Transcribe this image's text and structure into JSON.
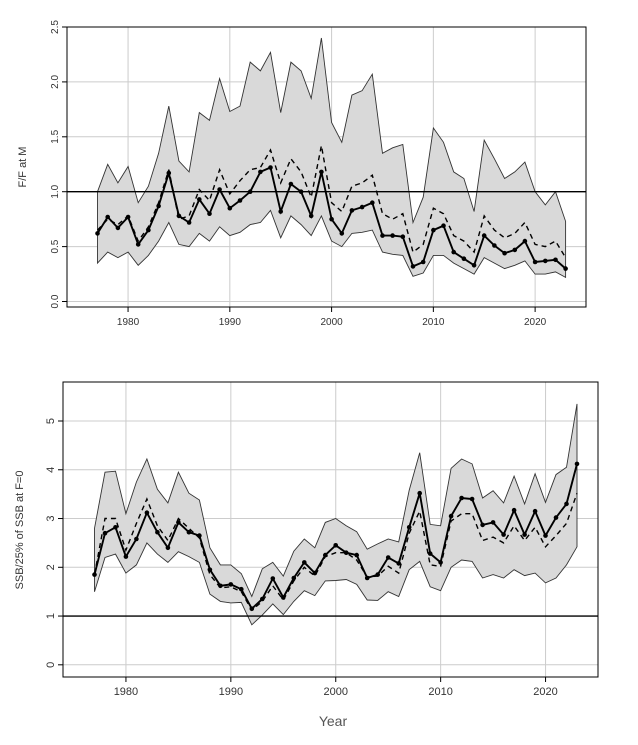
{
  "chart_data": [
    {
      "type": "line",
      "ylabel": "F/F at M",
      "xlabel": "",
      "xlim": [
        1974,
        2025
      ],
      "ylim": [
        -0.05,
        2.5
      ],
      "xticks": [
        1980,
        1990,
        2000,
        2010,
        2020
      ],
      "yticks": [
        "0.0",
        "0.5",
        "1.0",
        "1.5",
        "2.0",
        "2.5"
      ],
      "reference_line": 1.0,
      "grid": true,
      "colors": {
        "band": "#d9d9d9",
        "line": "#000000",
        "grid": "#cccccc"
      },
      "x": [
        1977,
        1978,
        1979,
        1980,
        1981,
        1982,
        1983,
        1984,
        1985,
        1986,
        1987,
        1988,
        1989,
        1990,
        1991,
        1992,
        1993,
        1994,
        1995,
        1996,
        1997,
        1998,
        1999,
        2000,
        2001,
        2002,
        2003,
        2004,
        2005,
        2006,
        2007,
        2008,
        2009,
        2010,
        2011,
        2012,
        2013,
        2014,
        2015,
        2016,
        2017,
        2018,
        2019,
        2020,
        2021,
        2022,
        2023
      ],
      "series": [
        {
          "role": "band_upper",
          "style": "area",
          "values": [
            1.0,
            1.25,
            1.08,
            1.23,
            0.9,
            1.05,
            1.35,
            1.78,
            1.28,
            1.18,
            1.72,
            1.65,
            2.03,
            1.73,
            1.78,
            2.18,
            2.1,
            2.27,
            1.72,
            2.18,
            2.1,
            1.85,
            2.4,
            1.63,
            1.45,
            1.88,
            1.92,
            2.07,
            1.35,
            1.4,
            1.43,
            0.72,
            0.95,
            1.58,
            1.45,
            1.18,
            1.12,
            0.82,
            1.47,
            1.3,
            1.12,
            1.18,
            1.27,
            1.0,
            0.88,
            1.0,
            0.73
          ]
        },
        {
          "role": "band_lower",
          "style": "area",
          "values": [
            0.35,
            0.45,
            0.4,
            0.45,
            0.33,
            0.42,
            0.55,
            0.72,
            0.52,
            0.5,
            0.62,
            0.55,
            0.68,
            0.6,
            0.63,
            0.7,
            0.72,
            0.83,
            0.58,
            0.78,
            0.7,
            0.6,
            0.78,
            0.55,
            0.5,
            0.62,
            0.63,
            0.65,
            0.45,
            0.43,
            0.42,
            0.23,
            0.26,
            0.42,
            0.42,
            0.35,
            0.3,
            0.25,
            0.4,
            0.35,
            0.3,
            0.33,
            0.37,
            0.25,
            0.25,
            0.27,
            0.22
          ]
        },
        {
          "role": "dashed",
          "style": "dashed",
          "values": [
            0.65,
            0.75,
            0.7,
            0.78,
            0.55,
            0.68,
            0.9,
            1.2,
            0.75,
            0.78,
            1.02,
            0.92,
            1.2,
            0.98,
            1.1,
            1.2,
            1.22,
            1.38,
            1.08,
            1.3,
            1.18,
            0.95,
            1.42,
            0.9,
            0.82,
            1.05,
            1.08,
            1.15,
            0.8,
            0.75,
            0.8,
            0.45,
            0.52,
            0.85,
            0.8,
            0.6,
            0.55,
            0.45,
            0.78,
            0.65,
            0.58,
            0.62,
            0.72,
            0.52,
            0.5,
            0.55,
            0.4
          ]
        },
        {
          "role": "median",
          "style": "solid-points",
          "values": [
            0.62,
            0.77,
            0.67,
            0.77,
            0.52,
            0.65,
            0.87,
            1.17,
            0.78,
            0.72,
            0.93,
            0.8,
            1.02,
            0.85,
            0.92,
            1.0,
            1.18,
            1.22,
            0.82,
            1.07,
            1.0,
            0.78,
            1.18,
            0.75,
            0.62,
            0.83,
            0.86,
            0.9,
            0.6,
            0.6,
            0.59,
            0.32,
            0.36,
            0.65,
            0.69,
            0.45,
            0.39,
            0.33,
            0.6,
            0.51,
            0.44,
            0.47,
            0.55,
            0.36,
            0.37,
            0.38,
            0.3
          ]
        }
      ]
    },
    {
      "type": "line",
      "ylabel": "SSB/25% of SSB at F=0",
      "xlabel": "Year",
      "xlim": [
        1974,
        2025
      ],
      "ylim": [
        -0.25,
        5.8
      ],
      "xticks": [
        1980,
        1990,
        2000,
        2010,
        2020
      ],
      "yticks": [
        "0",
        "1",
        "2",
        "3",
        "4",
        "5"
      ],
      "reference_line": 1.0,
      "grid": true,
      "colors": {
        "band": "#d9d9d9",
        "line": "#000000",
        "grid": "#cccccc"
      },
      "x": [
        1977,
        1978,
        1979,
        1980,
        1981,
        1982,
        1983,
        1984,
        1985,
        1986,
        1987,
        1988,
        1989,
        1990,
        1991,
        1992,
        1993,
        1994,
        1995,
        1996,
        1997,
        1998,
        1999,
        2000,
        2001,
        2002,
        2003,
        2004,
        2005,
        2006,
        2007,
        2008,
        2009,
        2010,
        2011,
        2012,
        2013,
        2014,
        2015,
        2016,
        2017,
        2018,
        2019,
        2020,
        2021,
        2022,
        2023
      ],
      "series": [
        {
          "role": "band_upper",
          "style": "area",
          "values": [
            2.8,
            3.95,
            3.97,
            3.1,
            3.75,
            4.22,
            3.6,
            3.32,
            3.95,
            3.52,
            3.38,
            2.4,
            2.05,
            2.05,
            1.87,
            1.4,
            1.97,
            2.1,
            1.82,
            2.33,
            2.58,
            2.4,
            2.92,
            3.0,
            2.85,
            2.73,
            2.37,
            2.48,
            2.58,
            2.52,
            3.58,
            4.35,
            2.88,
            2.85,
            4.03,
            4.22,
            4.12,
            3.42,
            3.57,
            3.32,
            3.87,
            3.3,
            3.92,
            3.33,
            3.9,
            4.05,
            5.35
          ]
        },
        {
          "role": "band_lower",
          "style": "area",
          "values": [
            1.5,
            2.2,
            2.27,
            1.88,
            2.05,
            2.5,
            2.27,
            2.1,
            2.32,
            2.22,
            2.1,
            1.45,
            1.3,
            1.27,
            1.28,
            0.82,
            1.02,
            1.25,
            1.03,
            1.3,
            1.52,
            1.42,
            1.72,
            1.73,
            1.75,
            1.65,
            1.33,
            1.32,
            1.5,
            1.4,
            1.95,
            2.12,
            1.6,
            1.52,
            2.0,
            2.15,
            2.12,
            1.78,
            1.85,
            1.78,
            1.95,
            1.83,
            1.88,
            1.68,
            1.78,
            2.05,
            2.42
          ]
        },
        {
          "role": "dashed",
          "style": "dashed",
          "values": [
            1.85,
            3.0,
            3.0,
            2.35,
            2.9,
            3.4,
            2.85,
            2.55,
            3.0,
            2.8,
            2.6,
            1.85,
            1.58,
            1.6,
            1.5,
            1.12,
            1.3,
            1.62,
            1.33,
            1.72,
            2.0,
            1.82,
            2.22,
            2.3,
            2.3,
            2.15,
            1.8,
            1.82,
            2.02,
            1.88,
            2.7,
            3.15,
            2.05,
            2.02,
            2.95,
            3.1,
            3.1,
            2.55,
            2.62,
            2.5,
            2.85,
            2.55,
            2.82,
            2.42,
            2.65,
            2.9,
            3.52
          ]
        },
        {
          "role": "median",
          "style": "solid-points",
          "values": [
            1.85,
            2.7,
            2.82,
            2.22,
            2.58,
            3.12,
            2.72,
            2.4,
            2.92,
            2.72,
            2.65,
            1.95,
            1.62,
            1.65,
            1.55,
            1.15,
            1.35,
            1.77,
            1.38,
            1.78,
            2.1,
            1.88,
            2.25,
            2.45,
            2.3,
            2.25,
            1.78,
            1.85,
            2.2,
            2.08,
            2.82,
            3.52,
            2.28,
            2.1,
            3.05,
            3.42,
            3.4,
            2.87,
            2.92,
            2.67,
            3.17,
            2.67,
            3.15,
            2.65,
            3.02,
            3.3,
            4.12
          ]
        }
      ]
    }
  ]
}
